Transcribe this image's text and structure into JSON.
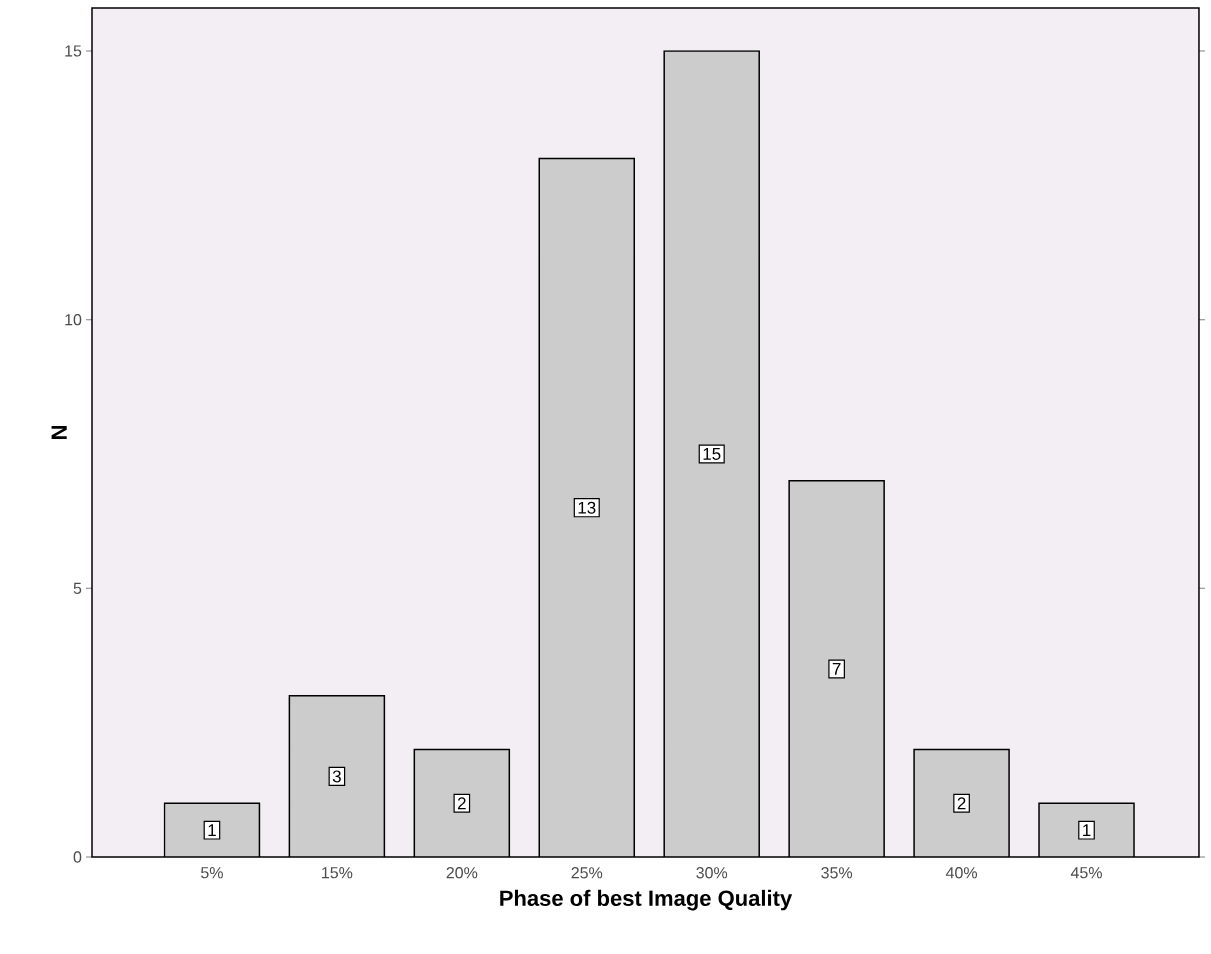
{
  "chart_data": {
    "type": "bar",
    "xlabel": "Phase of best Image Quality",
    "ylabel": "N",
    "categories": [
      "5%",
      "15%",
      "20%",
      "25%",
      "30%",
      "35%",
      "40%",
      "45%"
    ],
    "values": [
      1,
      3,
      2,
      13,
      15,
      7,
      2,
      1
    ],
    "color": "#cccccc",
    "ylim": [
      0,
      15.8
    ],
    "yticks": [
      0,
      5,
      10,
      15
    ],
    "grid": false,
    "data_labels": true
  }
}
